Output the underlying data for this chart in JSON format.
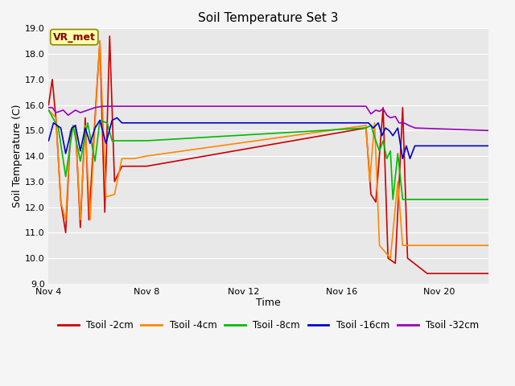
{
  "title": "Soil Temperature Set 3",
  "ylabel": "Soil Temperature (C)",
  "xlabel": "Time",
  "ylim": [
    9.0,
    19.0
  ],
  "yticks": [
    9.0,
    10.0,
    11.0,
    12.0,
    13.0,
    14.0,
    15.0,
    16.0,
    17.0,
    18.0,
    19.0
  ],
  "fig_bg": "#f5f5f5",
  "plot_bg": "#e8e8e8",
  "series_colors": {
    "Tsoil -2cm": "#cc0000",
    "Tsoil -4cm": "#ff8800",
    "Tsoil -8cm": "#00bb00",
    "Tsoil -16cm": "#0000cc",
    "Tsoil -32cm": "#9900bb"
  },
  "vr_met_label": "VR_met",
  "vr_met_bg": "#ffffaa",
  "vr_met_border": "#888800",
  "x_tick_labels": [
    "Nov 4",
    "Nov 8",
    "Nov 12",
    "Nov 16",
    "Nov 20"
  ],
  "x_tick_positions": [
    0,
    4,
    8,
    12,
    16
  ],
  "xlim": [
    0,
    18
  ],
  "linewidth": 1.2
}
